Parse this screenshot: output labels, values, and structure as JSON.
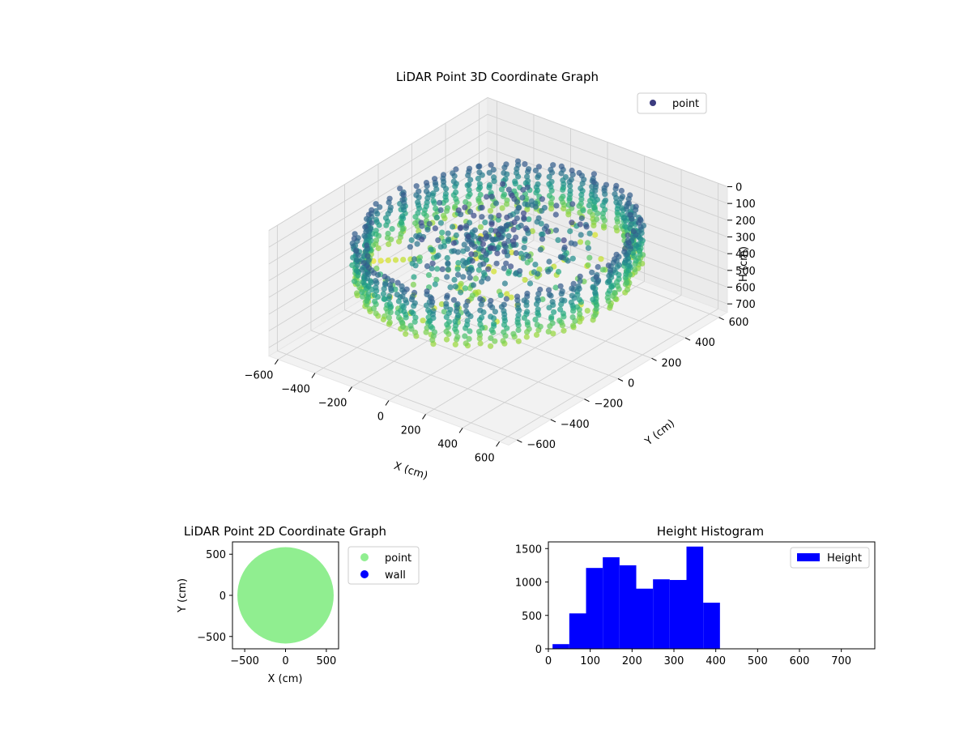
{
  "chart_data": [
    {
      "type": "scatter3d",
      "title": "LiDAR Point 3D Coordinate Graph",
      "xlabel": "X (cm)",
      "ylabel": "Y (cm)",
      "zlabel": "H (cm)",
      "xlim": [
        -650,
        650
      ],
      "ylim": [
        -650,
        650
      ],
      "zlim": [
        0,
        750
      ],
      "z_inverted": true,
      "xticks": [
        -600,
        -400,
        -200,
        0,
        200,
        400,
        600
      ],
      "yticks": [
        -600,
        -400,
        -200,
        0,
        200,
        400,
        600
      ],
      "zticks": [
        0,
        100,
        200,
        300,
        400,
        500,
        600,
        700
      ],
      "grid": true,
      "legend": {
        "placement": "upper-right",
        "entries": [
          {
            "label": "point",
            "color": "#3b3b7f"
          }
        ]
      },
      "colormap": "viridis",
      "structure": {
        "ring_radius": 560,
        "ring_heights": [
          200,
          420
        ],
        "column_count": 72,
        "center_blob_height": [
          100,
          250
        ],
        "stray_line": {
          "from": [
            -620,
            -150,
            480
          ],
          "to": [
            -380,
            -60,
            420
          ]
        }
      }
    },
    {
      "type": "scatter",
      "title": "LiDAR Point 2D Coordinate Graph",
      "xlabel": "X (cm)",
      "ylabel": "Y (cm)",
      "xlim": [
        -650,
        650
      ],
      "ylim": [
        -650,
        650
      ],
      "xticks": [
        -500,
        0,
        500
      ],
      "yticks": [
        -500,
        0,
        500
      ],
      "legend": {
        "placement": "outside-right",
        "entries": [
          {
            "label": "point",
            "color": "#90ee90"
          },
          {
            "label": "wall",
            "color": "#0000ff"
          }
        ]
      },
      "series": [
        {
          "name": "point",
          "color": "#90ee90",
          "shape": "disc",
          "radius": 590
        },
        {
          "name": "wall",
          "color": "#0000ff",
          "points": []
        }
      ]
    },
    {
      "type": "bar",
      "title": "Height Histogram",
      "xlim": [
        0,
        780
      ],
      "ylim": [
        0,
        1600
      ],
      "xticks": [
        0,
        100,
        200,
        300,
        400,
        500,
        600,
        700
      ],
      "yticks": [
        0,
        500,
        1000,
        1500
      ],
      "legend": {
        "placement": "upper-right",
        "entries": [
          {
            "label": "Height",
            "color": "#0000ff"
          }
        ]
      },
      "bin_edges": [
        10,
        50,
        90,
        130,
        170,
        210,
        250,
        290,
        330,
        370,
        410
      ],
      "values": [
        70,
        530,
        1210,
        1370,
        1250,
        900,
        1040,
        1030,
        1530,
        690
      ],
      "color": "#0000ff"
    }
  ]
}
